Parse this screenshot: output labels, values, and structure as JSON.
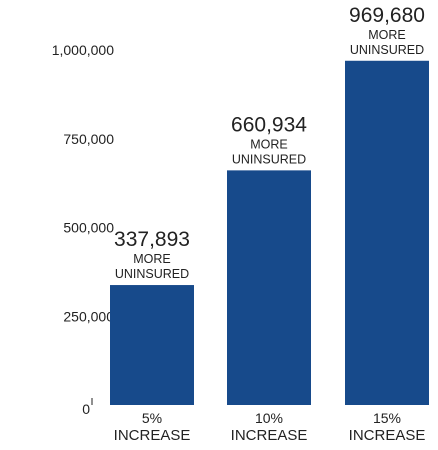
{
  "colors": {
    "bar": "#174a8b",
    "text": "#222222"
  },
  "chart_data": {
    "type": "bar",
    "categories": [
      "5%\nINCREASE",
      "10%\nINCREASE",
      "15%\nINCREASE"
    ],
    "values": [
      337893,
      660934,
      969680
    ],
    "data_labels": [
      "337,893",
      "660,934",
      "969,680"
    ],
    "annotation": "MORE\nUNINSURED",
    "y_ticks": [
      0,
      250000,
      500000,
      750000,
      1000000
    ],
    "y_tick_labels": [
      "0",
      "250,000",
      "500,000",
      "750,000",
      "1,000,000"
    ],
    "ylim": [
      0,
      1000000
    ],
    "title": "",
    "xlabel": "",
    "ylabel": "",
    "grid": false,
    "legend": "none"
  }
}
